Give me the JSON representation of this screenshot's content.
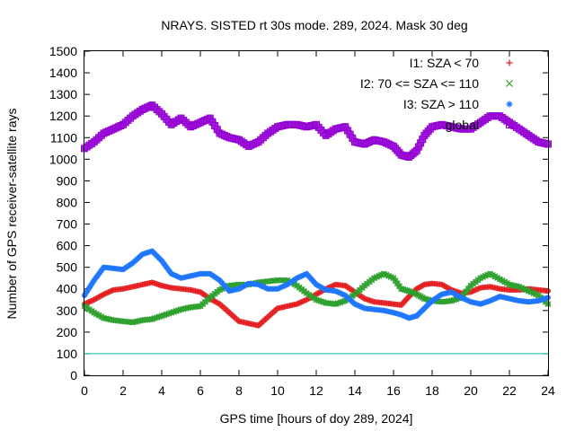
{
  "chart_data": {
    "type": "scatter",
    "title": "NRAYS. SISTED rt 30s mode. 289, 2024. Mask 30 deg",
    "xlabel": "GPS time [hours of doy 289, 2024]",
    "ylabel": "Number of GPS receiver-satellite rays",
    "xlim": [
      0,
      24
    ],
    "ylim": [
      0,
      1500
    ],
    "x_ticks": [
      0,
      2,
      4,
      6,
      8,
      10,
      12,
      14,
      16,
      18,
      20,
      22,
      24
    ],
    "y_ticks": [
      0,
      100,
      200,
      300,
      400,
      500,
      600,
      700,
      800,
      900,
      1000,
      1100,
      1200,
      1300,
      1400,
      1500
    ],
    "reference_line": {
      "y": 100,
      "color": "#00bfbf"
    },
    "legend_position": "top-right",
    "series": [
      {
        "name": "I1: SZA < 70",
        "marker": "plus",
        "color": "#e41a1c",
        "points": [
          [
            0,
            330
          ],
          [
            0.5,
            350
          ],
          [
            1,
            375
          ],
          [
            1.5,
            395
          ],
          [
            2,
            400
          ],
          [
            2.5,
            410
          ],
          [
            3,
            420
          ],
          [
            3.5,
            430
          ],
          [
            4,
            415
          ],
          [
            4.5,
            405
          ],
          [
            5,
            400
          ],
          [
            5.5,
            395
          ],
          [
            6,
            385
          ],
          [
            6.5,
            355
          ],
          [
            7,
            330
          ],
          [
            7.5,
            290
          ],
          [
            8,
            250
          ],
          [
            8.5,
            240
          ],
          [
            9,
            230
          ],
          [
            9.5,
            270
          ],
          [
            10,
            310
          ],
          [
            10.5,
            320
          ],
          [
            11,
            330
          ],
          [
            11.5,
            350
          ],
          [
            12,
            375
          ],
          [
            12.5,
            400
          ],
          [
            13,
            420
          ],
          [
            13.5,
            415
          ],
          [
            14,
            385
          ],
          [
            14.5,
            355
          ],
          [
            15,
            340
          ],
          [
            15.5,
            335
          ],
          [
            16,
            330
          ],
          [
            16.4,
            325
          ],
          [
            16.8,
            365
          ],
          [
            17.2,
            400
          ],
          [
            17.6,
            420
          ],
          [
            18,
            425
          ],
          [
            18.5,
            420
          ],
          [
            19,
            395
          ],
          [
            19.5,
            380
          ],
          [
            20,
            385
          ],
          [
            20.5,
            405
          ],
          [
            21,
            410
          ],
          [
            21.5,
            400
          ],
          [
            22,
            395
          ],
          [
            22.5,
            395
          ],
          [
            23,
            400
          ],
          [
            23.5,
            395
          ],
          [
            24,
            390
          ]
        ]
      },
      {
        "name": "I2: 70 <= SZA <= 110",
        "marker": "cross",
        "color": "#2ca02c",
        "points": [
          [
            0,
            320
          ],
          [
            0.5,
            290
          ],
          [
            1,
            265
          ],
          [
            1.5,
            255
          ],
          [
            2,
            250
          ],
          [
            2.5,
            245
          ],
          [
            3,
            255
          ],
          [
            3.5,
            260
          ],
          [
            4,
            275
          ],
          [
            4.5,
            290
          ],
          [
            5,
            305
          ],
          [
            5.5,
            315
          ],
          [
            6,
            320
          ],
          [
            6.5,
            360
          ],
          [
            7,
            395
          ],
          [
            7.5,
            415
          ],
          [
            8,
            420
          ],
          [
            8.5,
            420
          ],
          [
            9,
            430
          ],
          [
            9.5,
            435
          ],
          [
            10,
            440
          ],
          [
            10.5,
            440
          ],
          [
            11,
            415
          ],
          [
            11.5,
            380
          ],
          [
            12,
            350
          ],
          [
            12.5,
            335
          ],
          [
            13,
            330
          ],
          [
            13.5,
            345
          ],
          [
            14,
            375
          ],
          [
            14.5,
            415
          ],
          [
            15,
            450
          ],
          [
            15.5,
            470
          ],
          [
            16,
            450
          ],
          [
            16.4,
            400
          ],
          [
            16.8,
            390
          ],
          [
            17.2,
            375
          ],
          [
            17.6,
            355
          ],
          [
            18,
            345
          ],
          [
            18.5,
            340
          ],
          [
            19,
            345
          ],
          [
            19.5,
            360
          ],
          [
            20,
            415
          ],
          [
            20.5,
            450
          ],
          [
            21,
            470
          ],
          [
            21.5,
            445
          ],
          [
            22,
            420
          ],
          [
            22.5,
            410
          ],
          [
            23,
            390
          ],
          [
            23.5,
            370
          ],
          [
            24,
            330
          ]
        ]
      },
      {
        "name": "I3: SZA > 110",
        "marker": "star",
        "color": "#1f77ff",
        "points": [
          [
            0,
            370
          ],
          [
            0.5,
            440
          ],
          [
            1,
            500
          ],
          [
            1.5,
            495
          ],
          [
            2,
            490
          ],
          [
            2.5,
            520
          ],
          [
            3,
            560
          ],
          [
            3.5,
            575
          ],
          [
            4,
            530
          ],
          [
            4.5,
            470
          ],
          [
            5,
            450
          ],
          [
            5.5,
            460
          ],
          [
            6,
            470
          ],
          [
            6.5,
            470
          ],
          [
            7,
            440
          ],
          [
            7.5,
            390
          ],
          [
            8,
            400
          ],
          [
            8.5,
            425
          ],
          [
            9,
            420
          ],
          [
            9.5,
            400
          ],
          [
            10,
            400
          ],
          [
            10.5,
            420
          ],
          [
            11,
            450
          ],
          [
            11.5,
            470
          ],
          [
            12,
            420
          ],
          [
            12.5,
            395
          ],
          [
            13,
            390
          ],
          [
            13.5,
            370
          ],
          [
            14,
            330
          ],
          [
            14.5,
            310
          ],
          [
            15,
            305
          ],
          [
            15.5,
            300
          ],
          [
            16,
            290
          ],
          [
            16.4,
            280
          ],
          [
            16.8,
            265
          ],
          [
            17.2,
            275
          ],
          [
            17.6,
            310
          ],
          [
            18,
            345
          ],
          [
            18.5,
            375
          ],
          [
            19,
            385
          ],
          [
            19.5,
            360
          ],
          [
            20,
            340
          ],
          [
            20.5,
            330
          ],
          [
            21,
            345
          ],
          [
            21.5,
            365
          ],
          [
            22,
            355
          ],
          [
            22.5,
            345
          ],
          [
            23,
            340
          ],
          [
            23.5,
            345
          ],
          [
            24,
            360
          ]
        ]
      },
      {
        "name": "global",
        "marker": "square",
        "color": "#9400d3",
        "points": [
          [
            0,
            1050
          ],
          [
            0.5,
            1080
          ],
          [
            1,
            1120
          ],
          [
            1.5,
            1140
          ],
          [
            2,
            1160
          ],
          [
            2.5,
            1200
          ],
          [
            3,
            1230
          ],
          [
            3.5,
            1250
          ],
          [
            4,
            1210
          ],
          [
            4.5,
            1160
          ],
          [
            5,
            1190
          ],
          [
            5.5,
            1150
          ],
          [
            6,
            1170
          ],
          [
            6.5,
            1190
          ],
          [
            7,
            1120
          ],
          [
            7.5,
            1100
          ],
          [
            8,
            1090
          ],
          [
            8.5,
            1060
          ],
          [
            9,
            1080
          ],
          [
            9.5,
            1120
          ],
          [
            10,
            1150
          ],
          [
            10.5,
            1160
          ],
          [
            11,
            1160
          ],
          [
            11.5,
            1150
          ],
          [
            12,
            1160
          ],
          [
            12.5,
            1110
          ],
          [
            13,
            1140
          ],
          [
            13.5,
            1150
          ],
          [
            14,
            1080
          ],
          [
            14.5,
            1070
          ],
          [
            15,
            1090
          ],
          [
            15.5,
            1080
          ],
          [
            16,
            1060
          ],
          [
            16.4,
            1020
          ],
          [
            16.8,
            1010
          ],
          [
            17.2,
            1040
          ],
          [
            17.6,
            1110
          ],
          [
            18,
            1150
          ],
          [
            18.5,
            1160
          ],
          [
            19,
            1150
          ],
          [
            19.5,
            1140
          ],
          [
            20,
            1140
          ],
          [
            20.5,
            1170
          ],
          [
            21,
            1200
          ],
          [
            21.5,
            1200
          ],
          [
            22,
            1170
          ],
          [
            22.5,
            1140
          ],
          [
            23,
            1110
          ],
          [
            23.5,
            1080
          ],
          [
            24,
            1070
          ]
        ]
      }
    ]
  }
}
